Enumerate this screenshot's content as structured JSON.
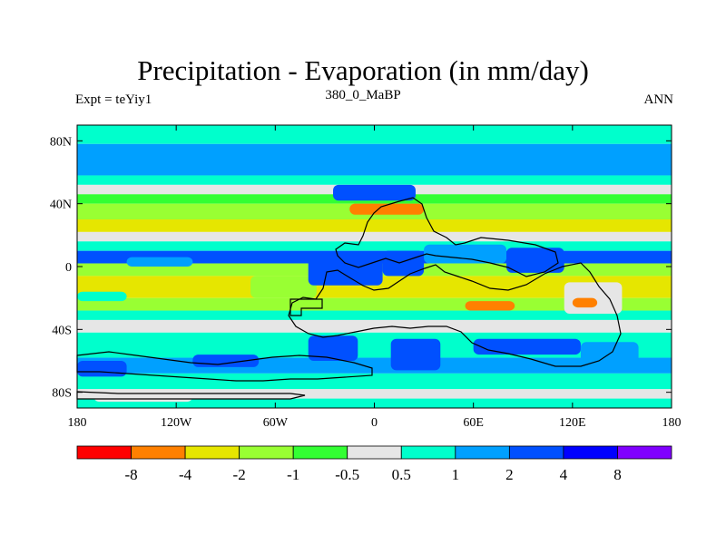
{
  "chart_data": {
    "type": "heatmap",
    "title": "Precipitation - Evaporation (in mm/day)",
    "subtitle_left": "Expt = teYiy1",
    "subtitle_center": "380_0_MaBP",
    "subtitle_right": "ANN",
    "x_range": [
      -180,
      180
    ],
    "y_range": [
      -90,
      90
    ],
    "x_ticks": [
      {
        "value": -180,
        "label": "180"
      },
      {
        "value": -120,
        "label": "120W"
      },
      {
        "value": -60,
        "label": "60W"
      },
      {
        "value": 0,
        "label": "0"
      },
      {
        "value": 60,
        "label": "60E"
      },
      {
        "value": 120,
        "label": "120E"
      },
      {
        "value": 180,
        "label": "180"
      }
    ],
    "y_ticks": [
      {
        "value": 80,
        "label": "80N"
      },
      {
        "value": 40,
        "label": "40N"
      },
      {
        "value": 0,
        "label": "0"
      },
      {
        "value": -40,
        "label": "40S"
      },
      {
        "value": -80,
        "label": "80S"
      }
    ],
    "colorbar": {
      "colors": [
        "#ff0000",
        "#ff8000",
        "#e6e600",
        "#99ff33",
        "#33ff33",
        "#e6e6e6",
        "#00ffcc",
        "#00a0ff",
        "#0050ff",
        "#0000ff",
        "#8000ff"
      ],
      "levels": [
        "-8",
        "-4",
        "-2",
        "-1",
        "-0.5",
        "0.5",
        "1",
        "2",
        "4",
        "8"
      ]
    },
    "zonal_bands": [
      {
        "lat": [
          78,
          90
        ],
        "color_index": 6
      },
      {
        "lat": [
          58,
          78
        ],
        "color_index": 7
      },
      {
        "lat": [
          52,
          58
        ],
        "color_index": 6
      },
      {
        "lat": [
          46,
          52
        ],
        "color_index": 5
      },
      {
        "lat": [
          40,
          46
        ],
        "color_index": 4
      },
      {
        "lat": [
          30,
          40
        ],
        "color_index": 3
      },
      {
        "lat": [
          22,
          30
        ],
        "color_index": 2
      },
      {
        "lat": [
          16,
          22
        ],
        "color_index": 5
      },
      {
        "lat": [
          10,
          16
        ],
        "color_index": 6
      },
      {
        "lat": [
          2,
          10
        ],
        "color_index": 8
      },
      {
        "lat": [
          -6,
          2
        ],
        "color_index": 3
      },
      {
        "lat": [
          -20,
          -6
        ],
        "color_index": 2
      },
      {
        "lat": [
          -28,
          -20
        ],
        "color_index": 3
      },
      {
        "lat": [
          -34,
          -28
        ],
        "color_index": 6
      },
      {
        "lat": [
          -42,
          -34
        ],
        "color_index": 5
      },
      {
        "lat": [
          -58,
          -42
        ],
        "color_index": 6
      },
      {
        "lat": [
          -68,
          -58
        ],
        "color_index": 7
      },
      {
        "lat": [
          -78,
          -68
        ],
        "color_index": 6
      },
      {
        "lat": [
          -84,
          -78
        ],
        "color_index": 5
      },
      {
        "lat": [
          -90,
          -84
        ],
        "color_index": 6
      }
    ],
    "patches": [
      {
        "lon": [
          -75,
          -35
        ],
        "lat": [
          -20,
          -6
        ],
        "color_index": 3
      },
      {
        "lon": [
          -180,
          -150
        ],
        "lat": [
          -22,
          -16
        ],
        "color_index": 6
      },
      {
        "lon": [
          -150,
          -110
        ],
        "lat": [
          0,
          6
        ],
        "color_index": 7
      },
      {
        "lon": [
          -25,
          25
        ],
        "lat": [
          42,
          52
        ],
        "color_index": 8
      },
      {
        "lon": [
          -15,
          30
        ],
        "lat": [
          33,
          40
        ],
        "color_index": 1
      },
      {
        "lon": [
          -40,
          5
        ],
        "lat": [
          -12,
          6
        ],
        "color_index": 8
      },
      {
        "lon": [
          5,
          30
        ],
        "lat": [
          -6,
          10
        ],
        "color_index": 8
      },
      {
        "lon": [
          30,
          80
        ],
        "lat": [
          2,
          14
        ],
        "color_index": 7
      },
      {
        "lon": [
          80,
          115
        ],
        "lat": [
          -4,
          12
        ],
        "color_index": 8
      },
      {
        "lon": [
          115,
          150
        ],
        "lat": [
          -30,
          -10
        ],
        "color_index": 5
      },
      {
        "lon": [
          55,
          85
        ],
        "lat": [
          -28,
          -22
        ],
        "color_index": 1
      },
      {
        "lon": [
          120,
          135
        ],
        "lat": [
          -26,
          -20
        ],
        "color_index": 1
      },
      {
        "lon": [
          -40,
          -10
        ],
        "lat": [
          -60,
          -44
        ],
        "color_index": 8
      },
      {
        "lon": [
          10,
          40
        ],
        "lat": [
          -66,
          -46
        ],
        "color_index": 8
      },
      {
        "lon": [
          60,
          125
        ],
        "lat": [
          -56,
          -46
        ],
        "color_index": 8
      },
      {
        "lon": [
          125,
          160
        ],
        "lat": [
          -62,
          -48
        ],
        "color_index": 7
      },
      {
        "lon": [
          -110,
          -70
        ],
        "lat": [
          -64,
          -56
        ],
        "color_index": 8
      },
      {
        "lon": [
          -180,
          -150
        ],
        "lat": [
          -70,
          -60
        ],
        "color_index": 8
      },
      {
        "lon": [
          -170,
          -110
        ],
        "lat": [
          -86,
          -78
        ],
        "color_index": 5
      }
    ]
  }
}
